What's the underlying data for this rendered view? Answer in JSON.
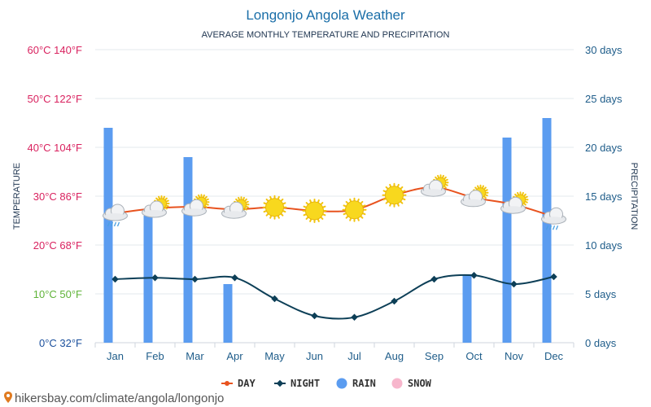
{
  "chart_data": {
    "type": "bar+line",
    "title": "Longonjo Angola Weather",
    "subtitle": "AVERAGE MONTHLY TEMPERATURE AND PRECIPITATION",
    "ylabel_left": "TEMPERATURE",
    "ylabel_right": "PRECIPITATION",
    "categories": [
      "Jan",
      "Feb",
      "Mar",
      "Apr",
      "May",
      "Jun",
      "Jul",
      "Aug",
      "Sep",
      "Oct",
      "Nov",
      "Dec"
    ],
    "left_ticks": [
      {
        "value": 0,
        "label": "0°C 32°F",
        "color": "#1a4f9c"
      },
      {
        "value": 10,
        "label": "10°C 50°F",
        "color": "#5fb338"
      },
      {
        "value": 20,
        "label": "20°C 68°F",
        "color": "#d9225f"
      },
      {
        "value": 30,
        "label": "30°C 86°F",
        "color": "#d9225f"
      },
      {
        "value": 40,
        "label": "40°C 104°F",
        "color": "#d9225f"
      },
      {
        "value": 50,
        "label": "50°C 122°F",
        "color": "#d9225f"
      },
      {
        "value": 60,
        "label": "60°C 140°F",
        "color": "#d9225f"
      }
    ],
    "right_ticks": [
      {
        "value": 0,
        "label": "0 days"
      },
      {
        "value": 5,
        "label": "5 days"
      },
      {
        "value": 10,
        "label": "10 days"
      },
      {
        "value": 15,
        "label": "15 days"
      },
      {
        "value": 20,
        "label": "20 days"
      },
      {
        "value": 25,
        "label": "25 days"
      },
      {
        "value": 30,
        "label": "30 days"
      }
    ],
    "left_range": [
      0,
      60
    ],
    "right_range": [
      0,
      30
    ],
    "series": [
      {
        "name": "DAY",
        "axis": "left",
        "color": "#e8531f",
        "values": [
          26.5,
          27.5,
          27.8,
          27.3,
          27.7,
          27.0,
          27.2,
          30.2,
          31.8,
          29.7,
          28.3,
          25.8
        ]
      },
      {
        "name": "NIGHT",
        "axis": "left",
        "color": "#0d3f57",
        "values": [
          13.0,
          13.3,
          13.0,
          13.3,
          9.0,
          5.5,
          5.2,
          8.5,
          13.0,
          13.8,
          12.0,
          13.5
        ]
      },
      {
        "name": "RAIN",
        "axis": "right",
        "color": "#5b9cf0",
        "values": [
          22,
          13,
          19,
          6,
          0,
          0,
          0,
          0,
          0,
          7,
          21,
          23
        ]
      },
      {
        "name": "SNOW",
        "axis": "right",
        "color": "#f7b6cc",
        "values": [
          0,
          0,
          0,
          0,
          0,
          0,
          0,
          0,
          0,
          0,
          0,
          0
        ]
      }
    ],
    "weather_icons": [
      "rain-cloud",
      "partly-cloudy",
      "partly-cloudy",
      "partly-cloudy",
      "sun",
      "sun",
      "sun",
      "sun",
      "partly-cloudy",
      "partly-cloudy",
      "partly-cloudy",
      "rain-cloud"
    ],
    "grid": true,
    "legend_position": "bottom-center"
  },
  "watermark": "hikersbay.com/climate/angola/longonjo"
}
